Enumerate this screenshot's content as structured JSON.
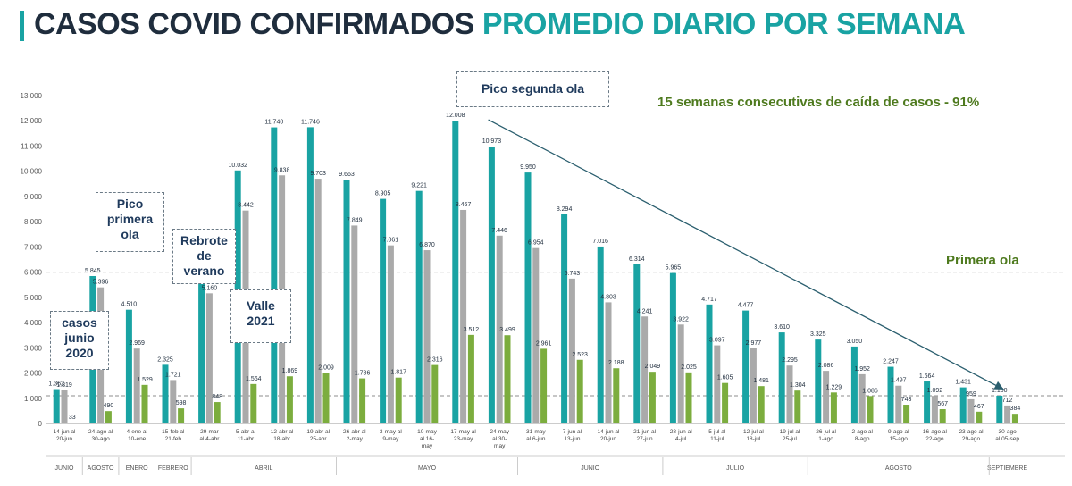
{
  "title": {
    "part1": "CASOS COVID CONFIRMADOS",
    "part2": "PROMEDIO DIARIO POR SEMANA"
  },
  "colors": {
    "s1": "#19a3a3",
    "s2": "#aaaaaa",
    "s3": "#7cad3e",
    "title_dark": "#1f2d3d",
    "title_teal": "#19a3a3",
    "annotation_green": "#4e7a1e",
    "navy": "#1f3a5c"
  },
  "annotations": {
    "casos_junio": [
      "casos",
      "junio",
      "2020"
    ],
    "pico_primera": [
      "Pico",
      "primera",
      "ola"
    ],
    "rebrote": [
      "Rebrote",
      "de",
      "verano"
    ],
    "valle": [
      "Valle",
      "2021"
    ],
    "pico_segunda": "Pico segunda ola",
    "caida": "15 semanas consecutivas de caída de casos - 91%",
    "primera_ola": "Primera  ola"
  },
  "chart_data": {
    "type": "bar",
    "title": "CASOS COVID CONFIRMADOS PROMEDIO DIARIO POR SEMANA",
    "ylim": [
      0,
      13000
    ],
    "yticks": [
      "0",
      "1.000",
      "2.000",
      "3.000",
      "4.000",
      "5.000",
      "6.000",
      "7.000",
      "8.000",
      "9.000",
      "10.000",
      "11.000",
      "12.000",
      "13.000"
    ],
    "reference_lines": [
      1100,
      6000
    ],
    "groups": [
      {
        "cat": [
          "14-jun al",
          "20-jun"
        ],
        "values": [
          1362,
          1319,
          33
        ],
        "labels": [
          "1.362",
          "1.319",
          "33"
        ]
      },
      {
        "cat": [
          "24-ago al",
          "30-ago"
        ],
        "values": [
          5845,
          5396,
          490
        ],
        "labels": [
          "5.845",
          "5.396",
          "490"
        ]
      },
      {
        "cat": [
          "4-ene al",
          "10-ene"
        ],
        "values": [
          4510,
          2969,
          1529
        ],
        "labels": [
          "4.510",
          "2.969",
          "1.529"
        ]
      },
      {
        "cat": [
          "15-feb al",
          "21-feb"
        ],
        "values": [
          2325,
          1721,
          598
        ],
        "labels": [
          "2.325",
          "1.721",
          "598"
        ]
      },
      {
        "cat": [
          "29-mar",
          "al 4-abr"
        ],
        "values": [
          6020,
          5160,
          848
        ],
        "labels": [
          "6.020",
          "5.160",
          "848"
        ]
      },
      {
        "cat": [
          "5-abr al",
          "11-abr"
        ],
        "values": [
          10032,
          8442,
          1564
        ],
        "labels": [
          "10.032",
          "8.442",
          "1.564"
        ]
      },
      {
        "cat": [
          "12-abr al",
          "18-abr"
        ],
        "values": [
          11740,
          9838,
          1869
        ],
        "labels": [
          "11.740",
          "9.838",
          "1.869"
        ]
      },
      {
        "cat": [
          "19-abr al",
          "25-abr"
        ],
        "values": [
          11746,
          9703,
          2009
        ],
        "labels": [
          "11.746",
          "9.703",
          "2.009"
        ]
      },
      {
        "cat": [
          "26-abr al",
          "2-may"
        ],
        "values": [
          9663,
          7849,
          1786
        ],
        "labels": [
          "9.663",
          "7.849",
          "1.786"
        ]
      },
      {
        "cat": [
          "3-may al",
          "9-may"
        ],
        "values": [
          8905,
          7061,
          1817
        ],
        "labels": [
          "8.905",
          "7.061",
          "1.817"
        ]
      },
      {
        "cat": [
          "10-may",
          "al 16-",
          "may"
        ],
        "values": [
          9221,
          6870,
          2316
        ],
        "labels": [
          "9.221",
          "6.870",
          "2.316"
        ]
      },
      {
        "cat": [
          "17-may al",
          "23-may"
        ],
        "values": [
          12008,
          8467,
          3512
        ],
        "labels": [
          "12.008",
          "8.467",
          "3.512"
        ]
      },
      {
        "cat": [
          "24-may",
          "al 30-",
          "may"
        ],
        "values": [
          10973,
          7446,
          3499
        ],
        "labels": [
          "10.973",
          "7.446",
          "3.499"
        ]
      },
      {
        "cat": [
          "31-may",
          "al 6-jun"
        ],
        "values": [
          9950,
          6954,
          2961
        ],
        "labels": [
          "9.950",
          "6.954",
          "2.961"
        ]
      },
      {
        "cat": [
          "7-jun al",
          "13-jun"
        ],
        "values": [
          8294,
          5743,
          2523
        ],
        "labels": [
          "8.294",
          "5.743",
          "2.523"
        ]
      },
      {
        "cat": [
          "14-jun al",
          "20-jun"
        ],
        "values": [
          7016,
          4803,
          2188
        ],
        "labels": [
          "7.016",
          "4.803",
          "2.188"
        ]
      },
      {
        "cat": [
          "21-jun al",
          "27-jun"
        ],
        "values": [
          6314,
          4241,
          2049
        ],
        "labels": [
          "6.314",
          "4.241",
          "2.049"
        ]
      },
      {
        "cat": [
          "28-jun al",
          "4-jul"
        ],
        "values": [
          5965,
          3922,
          2025
        ],
        "labels": [
          "5.965",
          "3.922",
          "2.025"
        ]
      },
      {
        "cat": [
          "5-jul al",
          "11-jul"
        ],
        "values": [
          4717,
          3097,
          1605
        ],
        "labels": [
          "4.717",
          "3.097",
          "1.605"
        ]
      },
      {
        "cat": [
          "12-jul al",
          "18-jul"
        ],
        "values": [
          4477,
          2977,
          1481
        ],
        "labels": [
          "4.477",
          "2.977",
          "1.481"
        ]
      },
      {
        "cat": [
          "19-jul al",
          "25-jul"
        ],
        "values": [
          3610,
          2295,
          1304
        ],
        "labels": [
          "3.610",
          "2.295",
          "1.304"
        ]
      },
      {
        "cat": [
          "26-jul al",
          "1-ago"
        ],
        "values": [
          3325,
          2086,
          1229
        ],
        "labels": [
          "3.325",
          "2.086",
          "1.229"
        ]
      },
      {
        "cat": [
          "2-ago al",
          "8-ago"
        ],
        "values": [
          3050,
          1952,
          1086
        ],
        "labels": [
          "3.050",
          "1.952",
          "1.086"
        ]
      },
      {
        "cat": [
          "9-ago al",
          "15-ago"
        ],
        "values": [
          2247,
          1497,
          743
        ],
        "labels": [
          "2.247",
          "1.497",
          "743"
        ]
      },
      {
        "cat": [
          "16-ago al",
          "22-ago"
        ],
        "values": [
          1664,
          1092,
          567
        ],
        "labels": [
          "1.664",
          "1.092",
          "567"
        ]
      },
      {
        "cat": [
          "23-ago al",
          "29-ago"
        ],
        "values": [
          1431,
          959,
          467
        ],
        "labels": [
          "1.431",
          "959",
          "467"
        ]
      },
      {
        "cat": [
          "30-ago",
          "al 05-sep"
        ],
        "values": [
          1100,
          712,
          384
        ],
        "labels": [
          "1.100",
          "712",
          "384"
        ]
      }
    ],
    "months": [
      {
        "label": "JUNIO",
        "from": 0,
        "to": 0
      },
      {
        "label": "AGOSTO",
        "from": 1,
        "to": 1
      },
      {
        "label": "ENERO",
        "from": 2,
        "to": 2
      },
      {
        "label": "FEBRERO",
        "from": 3,
        "to": 3
      },
      {
        "label": "ABRIL",
        "from": 4,
        "to": 7
      },
      {
        "label": "MAYO",
        "from": 8,
        "to": 12
      },
      {
        "label": "JUNIO",
        "from": 13,
        "to": 16
      },
      {
        "label": "JULIO",
        "from": 17,
        "to": 20
      },
      {
        "label": "AGOSTO",
        "from": 21,
        "to": 25
      },
      {
        "label": "SEPTIEMBRE",
        "from": 26,
        "to": 26
      }
    ],
    "trend_arrow": {
      "from_group": 11,
      "from_value": 11900,
      "to_group": 26,
      "to_value": 1350
    }
  }
}
